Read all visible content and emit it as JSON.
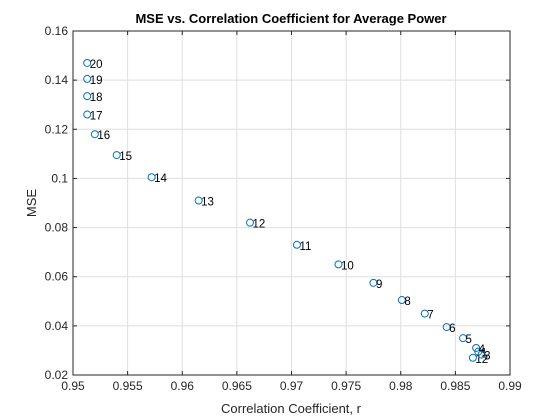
{
  "chart_data": {
    "type": "scatter",
    "title": "MSE vs. Correlation Coefficient for Average Power",
    "xlabel": "Correlation Coefficient, r",
    "ylabel": "MSE",
    "xlim": [
      0.95,
      0.99
    ],
    "ylim": [
      0.02,
      0.16
    ],
    "xticks": [
      "0.95",
      "0.955",
      "0.96",
      "0.965",
      "0.97",
      "0.975",
      "0.98",
      "0.985",
      "0.99"
    ],
    "yticks": [
      "0.02",
      "0.04",
      "0.06",
      "0.08",
      "0.1",
      "0.12",
      "0.14",
      "0.16"
    ],
    "grid": true,
    "marker_color": "#0072BD",
    "points": [
      {
        "x": 0.9871,
        "y": 0.0295,
        "label": "1"
      },
      {
        "x": 0.9866,
        "y": 0.027,
        "label": "12"
      },
      {
        "x": 0.9874,
        "y": 0.0283,
        "label": "3"
      },
      {
        "x": 0.9869,
        "y": 0.031,
        "label": "4"
      },
      {
        "x": 0.9857,
        "y": 0.035,
        "label": "5"
      },
      {
        "x": 0.9842,
        "y": 0.0395,
        "label": "6"
      },
      {
        "x": 0.9822,
        "y": 0.045,
        "label": "7"
      },
      {
        "x": 0.9801,
        "y": 0.0505,
        "label": "8"
      },
      {
        "x": 0.9775,
        "y": 0.0575,
        "label": "9"
      },
      {
        "x": 0.9743,
        "y": 0.065,
        "label": "10"
      },
      {
        "x": 0.9705,
        "y": 0.073,
        "label": "11"
      },
      {
        "x": 0.9662,
        "y": 0.082,
        "label": "12"
      },
      {
        "x": 0.9615,
        "y": 0.091,
        "label": "13"
      },
      {
        "x": 0.9572,
        "y": 0.1005,
        "label": "14"
      },
      {
        "x": 0.954,
        "y": 0.1095,
        "label": "15"
      },
      {
        "x": 0.952,
        "y": 0.118,
        "label": "16"
      },
      {
        "x": 0.9513,
        "y": 0.126,
        "label": "17"
      },
      {
        "x": 0.9513,
        "y": 0.1335,
        "label": "18"
      },
      {
        "x": 0.9513,
        "y": 0.1405,
        "label": "19"
      },
      {
        "x": 0.9513,
        "y": 0.147,
        "label": "20"
      }
    ]
  }
}
